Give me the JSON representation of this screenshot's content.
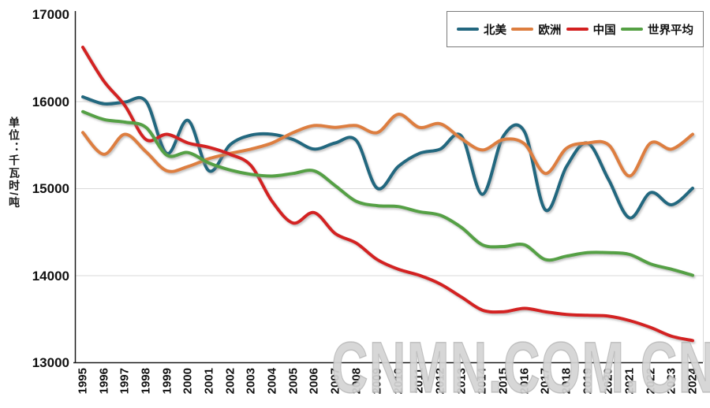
{
  "watermark": "CNMN.COM.CN",
  "chart_data": {
    "type": "line",
    "title": "",
    "xlabel": "",
    "ylabel": "单位：千瓦时/吨",
    "ylim": [
      13000,
      17000
    ],
    "yticks": [
      13000,
      14000,
      15000,
      16000,
      17000
    ],
    "grid": "horizontal-light-gray",
    "legend_position": "top-right-boxed",
    "x": [
      1995,
      1996,
      1997,
      1998,
      1999,
      2000,
      2001,
      2002,
      2003,
      2004,
      2005,
      2006,
      2007,
      2008,
      2009,
      2010,
      2011,
      2012,
      2013,
      2014,
      2015,
      2016,
      2017,
      2018,
      2019,
      2020,
      2021,
      2022,
      2023,
      2024
    ],
    "series": [
      {
        "name": "北美",
        "color": "#23677F",
        "values": [
          16050,
          15970,
          15990,
          16000,
          15400,
          15780,
          15200,
          15500,
          15610,
          15620,
          15560,
          15450,
          15520,
          15550,
          15000,
          15250,
          15400,
          15450,
          15600,
          14930,
          15600,
          15650,
          14750,
          15250,
          15520,
          15100,
          14660,
          14950,
          14810,
          15000
        ]
      },
      {
        "name": "欧洲",
        "color": "#DD7E3F",
        "values": [
          15640,
          15390,
          15620,
          15420,
          15200,
          15250,
          15340,
          15400,
          15450,
          15520,
          15640,
          15720,
          15700,
          15720,
          15640,
          15850,
          15700,
          15740,
          15570,
          15440,
          15560,
          15510,
          15170,
          15460,
          15520,
          15500,
          15140,
          15520,
          15450,
          15620
        ]
      },
      {
        "name": "中国",
        "color": "#D32020",
        "values": [
          16620,
          16230,
          15950,
          15560,
          15620,
          15520,
          15470,
          15390,
          15260,
          14850,
          14600,
          14720,
          14480,
          14370,
          14180,
          14070,
          14000,
          13900,
          13750,
          13600,
          13580,
          13620,
          13580,
          13550,
          13540,
          13530,
          13480,
          13400,
          13300,
          13250
        ]
      },
      {
        "name": "世界平均",
        "color": "#55A044",
        "values": [
          15880,
          15790,
          15760,
          15700,
          15380,
          15410,
          15290,
          15210,
          15160,
          15140,
          15170,
          15200,
          15030,
          14850,
          14800,
          14790,
          14730,
          14690,
          14550,
          14350,
          14330,
          14350,
          14180,
          14220,
          14260,
          14260,
          14240,
          14130,
          14070,
          14000
        ]
      }
    ]
  }
}
